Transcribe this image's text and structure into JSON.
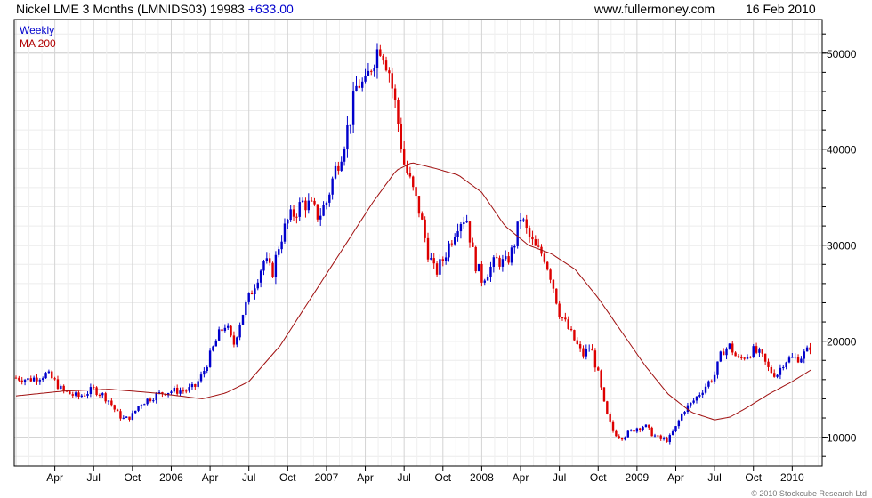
{
  "header": {
    "title": "Nickel LME 3 Months (LMNIDS03) 19983",
    "change": "+633.00",
    "site": "www.fullermoney.com",
    "date": "16 Feb 2010"
  },
  "legend": {
    "weekly": "Weekly",
    "ma": "MA 200"
  },
  "copyright": "© 2010 Stockcube Research Ltd",
  "colors": {
    "up": "#0000cc",
    "down": "#dd0000",
    "ma": "#a01010",
    "grid": "#d8d8d8"
  },
  "chart_data": {
    "type": "candlestick",
    "title": "Nickel LME 3 Months (LMNIDS03) 19983",
    "ylim": [
      7000,
      53500
    ],
    "yticks": [
      10000,
      20000,
      30000,
      40000,
      50000
    ],
    "xticks": [
      {
        "label": "Apr",
        "t": 0.25
      },
      {
        "label": "Jul",
        "t": 0.5
      },
      {
        "label": "Oct",
        "t": 0.75
      },
      {
        "label": "2006",
        "t": 1.0
      },
      {
        "label": "Apr",
        "t": 1.25
      },
      {
        "label": "Jul",
        "t": 1.5
      },
      {
        "label": "Oct",
        "t": 1.75
      },
      {
        "label": "2007",
        "t": 2.0
      },
      {
        "label": "Apr",
        "t": 2.25
      },
      {
        "label": "Jul",
        "t": 2.5
      },
      {
        "label": "Oct",
        "t": 2.75
      },
      {
        "label": "2008",
        "t": 3.0
      },
      {
        "label": "Apr",
        "t": 3.25
      },
      {
        "label": "Jul",
        "t": 3.5
      },
      {
        "label": "Oct",
        "t": 3.75
      },
      {
        "label": "2009",
        "t": 4.0
      },
      {
        "label": "Apr",
        "t": 4.25
      },
      {
        "label": "Jul",
        "t": 4.5
      },
      {
        "label": "Oct",
        "t": 4.75
      },
      {
        "label": "2010",
        "t": 5.0
      }
    ],
    "series": [
      {
        "name": "Weekly",
        "path": [
          [
            0.0,
            16200
          ],
          [
            0.08,
            16000
          ],
          [
            0.15,
            16300
          ],
          [
            0.2,
            16600
          ],
          [
            0.25,
            15800
          ],
          [
            0.3,
            14800
          ],
          [
            0.4,
            14200
          ],
          [
            0.5,
            15000
          ],
          [
            0.55,
            14500
          ],
          [
            0.6,
            13800
          ],
          [
            0.65,
            12500
          ],
          [
            0.7,
            11800
          ],
          [
            0.75,
            12300
          ],
          [
            0.8,
            13500
          ],
          [
            0.88,
            14200
          ],
          [
            0.95,
            14700
          ],
          [
            1.0,
            14800
          ],
          [
            1.1,
            14900
          ],
          [
            1.15,
            15200
          ],
          [
            1.2,
            16500
          ],
          [
            1.25,
            18500
          ],
          [
            1.3,
            20500
          ],
          [
            1.35,
            21800
          ],
          [
            1.4,
            19500
          ],
          [
            1.45,
            22500
          ],
          [
            1.5,
            24500
          ],
          [
            1.55,
            26500
          ],
          [
            1.6,
            28500
          ],
          [
            1.65,
            27000
          ],
          [
            1.7,
            30500
          ],
          [
            1.75,
            32500
          ],
          [
            1.8,
            33500
          ],
          [
            1.85,
            34500
          ],
          [
            1.9,
            34000
          ],
          [
            1.95,
            33000
          ],
          [
            2.0,
            34500
          ],
          [
            2.05,
            37500
          ],
          [
            2.1,
            40000
          ],
          [
            2.15,
            43000
          ],
          [
            2.2,
            47000
          ],
          [
            2.25,
            46500
          ],
          [
            2.3,
            49500
          ],
          [
            2.35,
            51000
          ],
          [
            2.4,
            48500
          ],
          [
            2.45,
            44000
          ],
          [
            2.5,
            38500
          ],
          [
            2.55,
            36000
          ],
          [
            2.6,
            33500
          ],
          [
            2.65,
            29500
          ],
          [
            2.7,
            27000
          ],
          [
            2.75,
            28500
          ],
          [
            2.8,
            30500
          ],
          [
            2.85,
            32500
          ],
          [
            2.9,
            33000
          ],
          [
            2.95,
            28500
          ],
          [
            3.0,
            26500
          ],
          [
            3.05,
            27500
          ],
          [
            3.1,
            28500
          ],
          [
            3.15,
            28000
          ],
          [
            3.2,
            29500
          ],
          [
            3.25,
            33000
          ],
          [
            3.3,
            31000
          ],
          [
            3.35,
            29500
          ],
          [
            3.4,
            29000
          ],
          [
            3.45,
            26500
          ],
          [
            3.5,
            23000
          ],
          [
            3.55,
            21500
          ],
          [
            3.6,
            20000
          ],
          [
            3.65,
            18500
          ],
          [
            3.7,
            19500
          ],
          [
            3.75,
            16500
          ],
          [
            3.8,
            12500
          ],
          [
            3.85,
            10500
          ],
          [
            3.9,
            10000
          ],
          [
            3.95,
            10500
          ],
          [
            4.0,
            11000
          ],
          [
            4.05,
            11200
          ],
          [
            4.1,
            10300
          ],
          [
            4.15,
            9800
          ],
          [
            4.2,
            9700
          ],
          [
            4.25,
            11000
          ],
          [
            4.3,
            12800
          ],
          [
            4.35,
            13500
          ],
          [
            4.4,
            14500
          ],
          [
            4.45,
            15500
          ],
          [
            4.5,
            16500
          ],
          [
            4.55,
            19000
          ],
          [
            4.6,
            19500
          ],
          [
            4.65,
            18000
          ],
          [
            4.7,
            18500
          ],
          [
            4.75,
            19000
          ],
          [
            4.8,
            18500
          ],
          [
            4.85,
            17000
          ],
          [
            4.9,
            16500
          ],
          [
            4.95,
            18000
          ],
          [
            5.0,
            18200
          ],
          [
            5.05,
            18300
          ],
          [
            5.1,
            19000
          ],
          [
            5.13,
            19983
          ]
        ]
      },
      {
        "name": "MA 200",
        "path": [
          [
            0.0,
            14300
          ],
          [
            0.3,
            14800
          ],
          [
            0.6,
            15000
          ],
          [
            0.9,
            14600
          ],
          [
            1.2,
            14000
          ],
          [
            1.35,
            14600
          ],
          [
            1.5,
            15800
          ],
          [
            1.7,
            19500
          ],
          [
            1.9,
            24500
          ],
          [
            2.1,
            29500
          ],
          [
            2.3,
            34500
          ],
          [
            2.45,
            37800
          ],
          [
            2.55,
            38600
          ],
          [
            2.7,
            38000
          ],
          [
            2.85,
            37300
          ],
          [
            3.0,
            35500
          ],
          [
            3.15,
            32000
          ],
          [
            3.3,
            30000
          ],
          [
            3.45,
            29100
          ],
          [
            3.6,
            27500
          ],
          [
            3.75,
            24500
          ],
          [
            3.9,
            21000
          ],
          [
            4.05,
            17500
          ],
          [
            4.2,
            14500
          ],
          [
            4.35,
            12600
          ],
          [
            4.5,
            11800
          ],
          [
            4.6,
            12100
          ],
          [
            4.7,
            13000
          ],
          [
            4.85,
            14500
          ],
          [
            5.0,
            15800
          ],
          [
            5.13,
            17100
          ]
        ]
      }
    ]
  }
}
